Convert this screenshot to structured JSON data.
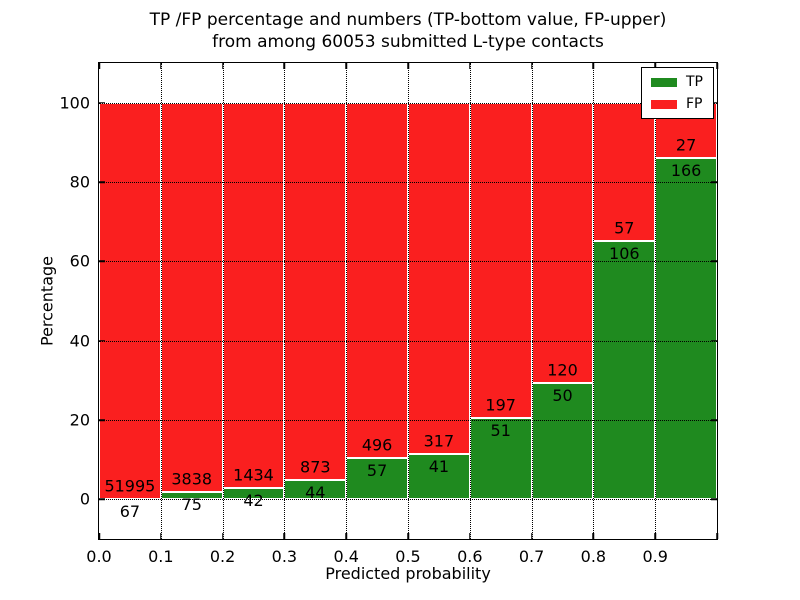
{
  "title": {
    "line1": "TP /FP percentage and numbers (TP-bottom value, FP-upper)",
    "line2": "from among 60053 submitted L-type contacts"
  },
  "chart_data": {
    "type": "bar",
    "stacked": true,
    "title": "TP /FP percentage and numbers (TP-bottom value, FP-upper)\nfrom among 60053 submitted L-type contacts",
    "xlabel": "Predicted probability",
    "ylabel": "Percentage",
    "total_submitted": 60053,
    "xlim": [
      0.0,
      1.0
    ],
    "ylim": [
      -10,
      110
    ],
    "bin_width": 0.1,
    "grid": "dotted",
    "legend_position": "upper right",
    "categories": [
      "0.0-0.1",
      "0.1-0.2",
      "0.2-0.3",
      "0.3-0.4",
      "0.4-0.5",
      "0.5-0.6",
      "0.6-0.7",
      "0.7-0.8",
      "0.8-0.9",
      "0.9-1.0"
    ],
    "x_tick_labels": [
      "0.0",
      "0.1",
      "0.2",
      "0.3",
      "0.4",
      "0.5",
      "0.6",
      "0.7",
      "0.8",
      "0.9"
    ],
    "y_ticks": [
      0,
      20,
      40,
      60,
      80,
      100
    ],
    "series": [
      {
        "name": "TP",
        "color": "#1f8a1f",
        "values": [
          67,
          75,
          42,
          44,
          57,
          41,
          51,
          50,
          106,
          166
        ]
      },
      {
        "name": "FP",
        "color": "#fa1f1f",
        "values": [
          51995,
          3838,
          1434,
          873,
          496,
          317,
          197,
          120,
          57,
          27
        ]
      }
    ],
    "tp_percent": [
      0.13,
      1.92,
      2.85,
      4.8,
      10.31,
      11.45,
      20.56,
      29.41,
      65.03,
      86.01
    ],
    "colors": {
      "tp": "#1f8a1f",
      "fp": "#fa1f1f",
      "axis": "#000000",
      "background": "#ffffff"
    }
  }
}
